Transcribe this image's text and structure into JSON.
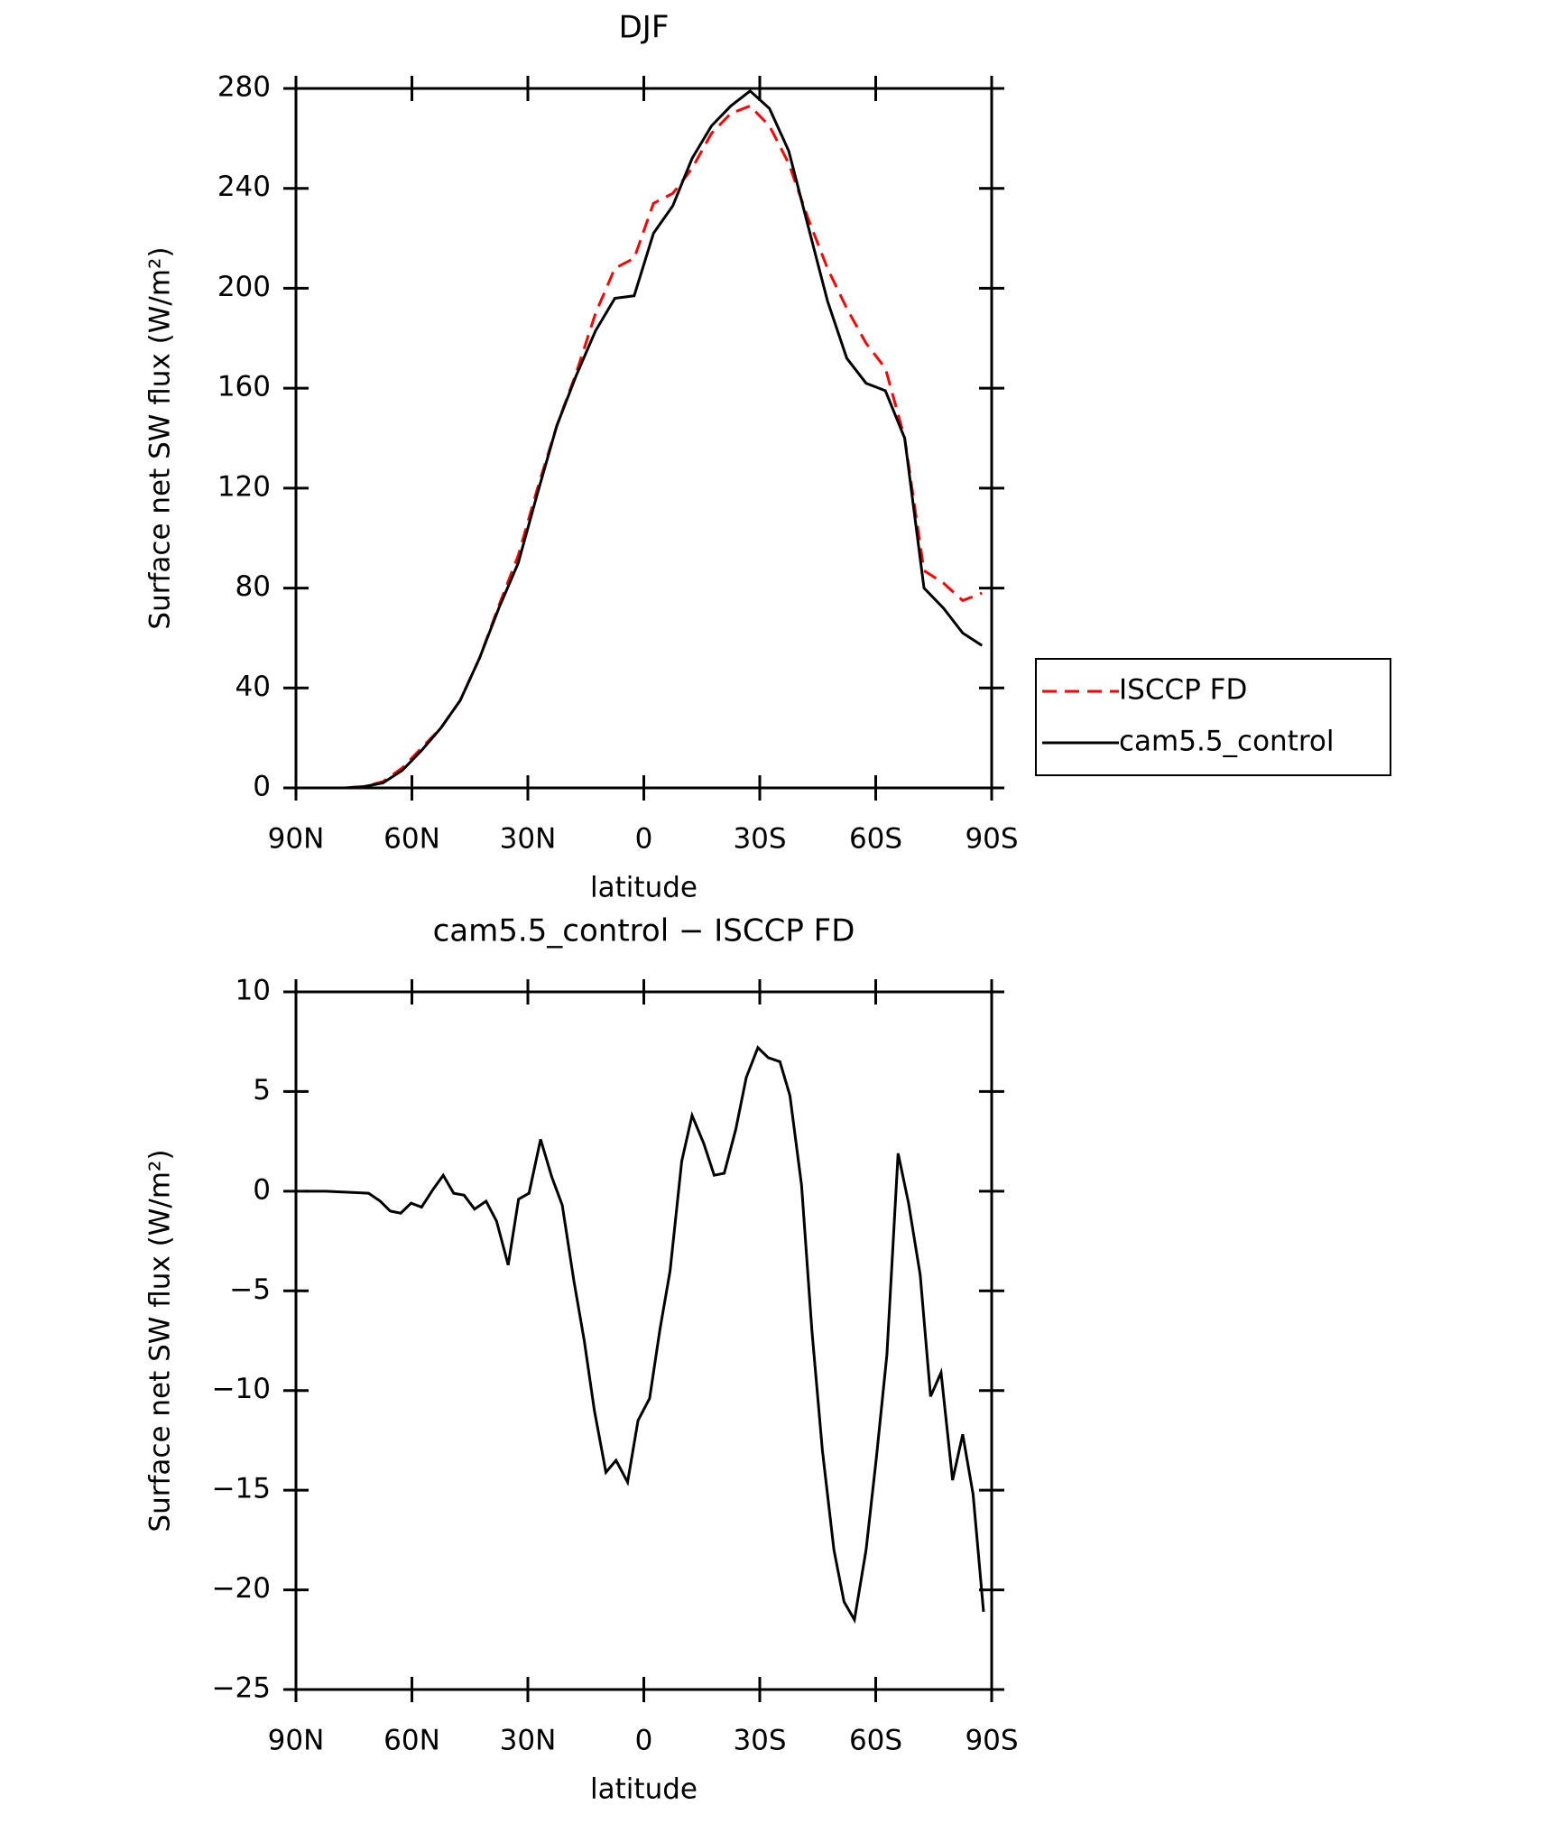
{
  "chart_data": [
    {
      "type": "line",
      "title": "DJF",
      "xlabel": "latitude",
      "ylabel": "Surface net SW flux (W/m²)",
      "x": [
        87.5,
        82.5,
        77.5,
        72.5,
        67.5,
        62.5,
        57.5,
        52.5,
        47.5,
        42.5,
        37.5,
        32.5,
        27.5,
        22.5,
        17.5,
        12.5,
        7.5,
        2.5,
        -2.5,
        -7.5,
        -12.5,
        -17.5,
        -22.5,
        -27.5,
        -32.5,
        -37.5,
        -42.5,
        -47.5,
        -52.5,
        -57.5,
        -62.5,
        -67.5,
        -72.5,
        -77.5,
        -82.5,
        -87.5
      ],
      "series": [
        {
          "name": "ISCCP FD",
          "color": "#ff0000",
          "dash": true,
          "values": [
            0,
            0,
            0,
            0.5,
            2.5,
            8,
            16,
            24,
            35,
            52,
            73,
            93,
            120,
            145,
            166,
            190,
            208,
            212,
            234,
            238,
            248,
            262,
            270,
            273,
            265,
            250,
            228,
            208,
            192,
            178,
            168,
            140,
            87,
            82,
            75,
            78
          ]
        },
        {
          "name": "cam5.5_control",
          "color": "#000000",
          "dash": false,
          "values": [
            0,
            0,
            0,
            0.5,
            2,
            7,
            15,
            24,
            35,
            52,
            72,
            90,
            118,
            145,
            165,
            183,
            196,
            197,
            222,
            233,
            252,
            265,
            273,
            279,
            272,
            255,
            225,
            195,
            172,
            162,
            159,
            140,
            80,
            72,
            62,
            57
          ]
        }
      ],
      "xlim": [
        90,
        -90
      ],
      "xticks": [
        {
          "value": 90,
          "label": "90N"
        },
        {
          "value": 60,
          "label": "60N"
        },
        {
          "value": 30,
          "label": "30N"
        },
        0,
        {
          "value": -30,
          "label": "30S"
        },
        {
          "value": -60,
          "label": "60S"
        },
        {
          "value": -90,
          "label": "90S"
        }
      ],
      "ylim": [
        0,
        280
      ],
      "yticks": [
        0,
        40,
        80,
        120,
        160,
        200,
        240,
        280
      ],
      "legend": "right"
    },
    {
      "type": "line",
      "title": "cam5.5_control − ISCCP FD",
      "xlabel": "latitude",
      "ylabel": "Surface net SW flux (W/m²)",
      "x": [
        87.6,
        82.3,
        76.6,
        71.2,
        68.2,
        65.6,
        62.9,
        60.2,
        57.5,
        54.5,
        51.9,
        49.2,
        46.5,
        43.8,
        40.8,
        38.1,
        35.1,
        32.4,
        29.7,
        26.7,
        23.8,
        21.1,
        18.1,
        15.4,
        12.8,
        9.8,
        7.2,
        4.2,
        1.5,
        -1.5,
        -4.2,
        -6.8,
        -9.8,
        -12.5,
        -15.5,
        -18.2,
        -20.8,
        -23.8,
        -26.5,
        -29.5,
        -32.2,
        -35.2,
        -37.8,
        -40.8,
        -43.5,
        -46.2,
        -49.2,
        -51.8,
        -54.5,
        -57.5,
        -60.2,
        -62.9,
        -65.8,
        -68.5,
        -71.5,
        -74.2,
        -76.9,
        -79.9,
        -82.5,
        -85.2,
        -87.9
      ],
      "series": [
        {
          "name": "cam5.5_control − ISCCP FD",
          "color": "#000000",
          "dash": false,
          "values": [
            0,
            0,
            -0.05,
            -0.1,
            -0.5,
            -1.0,
            -1.1,
            -0.6,
            -0.8,
            0.1,
            0.8,
            -0.1,
            -0.2,
            -0.9,
            -0.5,
            -1.5,
            -3.7,
            -0.4,
            -0.1,
            2.6,
            0.7,
            -0.7,
            -4.5,
            -7.5,
            -11,
            -14.1,
            -13.5,
            -14.6,
            -11.5,
            -10.4,
            -6.9,
            -4.0,
            1.5,
            3.8,
            2.4,
            0.8,
            0.9,
            3.1,
            5.7,
            7.2,
            6.7,
            6.5,
            4.8,
            0.3,
            -7,
            -13,
            -18,
            -20.6,
            -21.5,
            -18,
            -13.3,
            -8.2,
            1.9,
            -0.6,
            -4.2,
            -10.3,
            -9.1,
            -14.5,
            -12.2,
            -15.2,
            -21.1
          ]
        }
      ],
      "xlim": [
        90,
        -90
      ],
      "xticks": [
        {
          "value": 90,
          "label": "90N"
        },
        {
          "value": 60,
          "label": "60N"
        },
        {
          "value": 30,
          "label": "30N"
        },
        0,
        {
          "value": -30,
          "label": "30S"
        },
        {
          "value": -60,
          "label": "60S"
        },
        {
          "value": -90,
          "label": "90S"
        }
      ],
      "ylim": [
        -25,
        10
      ],
      "yticks": [
        {
          "value": -25,
          "label": "−25"
        },
        {
          "value": -20,
          "label": "−20"
        },
        {
          "value": -15,
          "label": "−15"
        },
        {
          "value": -10,
          "label": "−10"
        },
        {
          "value": -5,
          "label": "−5"
        },
        0,
        5,
        10
      ]
    }
  ]
}
